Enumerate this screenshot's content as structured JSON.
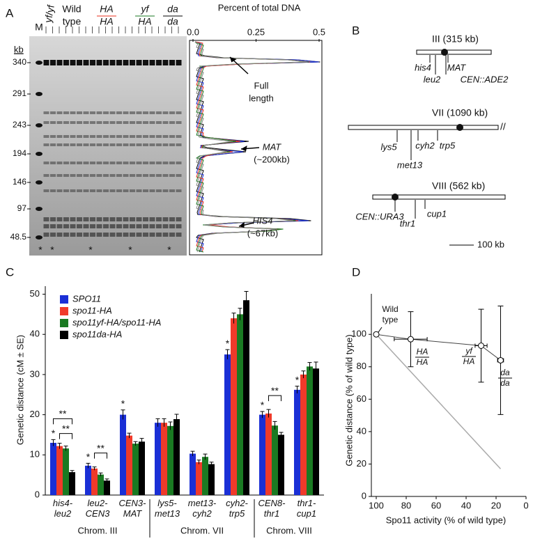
{
  "panel_labels": [
    "A",
    "B",
    "C",
    "D"
  ],
  "gel": {
    "lanes": [
      [
        "M"
      ],
      [
        "yf/yf"
      ],
      [
        "Wild",
        "type"
      ],
      [
        "HA",
        "HA"
      ],
      [
        "yf",
        "HA"
      ],
      [
        "da",
        "da"
      ]
    ],
    "lane_colors": [
      "#000000",
      "#555555",
      "#1a2fd6",
      "#e8321e",
      "#1a7a22",
      "#000000"
    ],
    "size_unit": "kb",
    "sizes": [
      340,
      291,
      243,
      194,
      146,
      97,
      48.5
    ],
    "stars": [
      "*",
      "*",
      "*",
      "*",
      "*"
    ]
  },
  "profile": {
    "axis_label": "Percent of total DNA",
    "xlim": [
      0,
      0.5
    ],
    "xticks": [
      {
        "value": 0,
        "label": "0.0"
      },
      0.25,
      0.5
    ],
    "annotations": [
      [
        "Full",
        "length"
      ],
      [
        "MAT",
        "(~200kb)"
      ],
      [
        "HIS4",
        "(~67kb)"
      ]
    ]
  },
  "map": {
    "chromosomes": [
      {
        "name": "III (315 kb)",
        "loci": [
          "his4",
          "leu2",
          "MAT",
          "CEN::ADE2"
        ]
      },
      {
        "name": "VII (1090 kb)",
        "loci": [
          "lys5",
          "met13",
          "cyh2",
          "trp5"
        ]
      },
      {
        "name": "VIII (562 kb)",
        "loci": [
          "CEN::URA3",
          "thr1",
          "cup1"
        ]
      }
    ],
    "scale": "100 kb"
  },
  "chart_data": [
    {
      "type": "bar",
      "ylabel": "Genetic distance (cM ± SE)",
      "categories": [
        "his4-leu2",
        "leu2-CEN3",
        "CEN3-MAT",
        "lys5-met13",
        "met13-cyh2",
        "cyh2-trp5",
        "CEN8-thr1",
        "thr1-cup1"
      ],
      "groups": [
        "Chrom. III",
        "Chrom. VII",
        "Chrom. VIII"
      ],
      "series": [
        {
          "name": "SPO11",
          "color": "#1a2fd6",
          "values": [
            13,
            7.3,
            20,
            18,
            10.3,
            35,
            20,
            26.2
          ],
          "errors": [
            0.8,
            0.6,
            1.2,
            1,
            0.6,
            1.2,
            0.8,
            0.9
          ]
        },
        {
          "name": "spo11-HA",
          "color": "#f03a2a",
          "values": [
            12.2,
            6.6,
            14.8,
            18,
            8.2,
            44,
            20.3,
            30
          ],
          "errors": [
            0.7,
            0.4,
            0.6,
            1,
            0.5,
            1.3,
            1,
            0.9
          ]
        },
        {
          "name": "spo11yf-HA/spo11-HA",
          "color": "#1a7a22",
          "values": [
            11.6,
            5.1,
            12.8,
            17.2,
            9.5,
            45,
            17.3,
            32
          ],
          "errors": [
            0.6,
            0.4,
            0.5,
            1,
            0.7,
            1.5,
            1,
            1
          ]
        },
        {
          "name": "spo11da-HA",
          "color": "#000000",
          "values": [
            5.7,
            3.6,
            13.3,
            18.9,
            7.7,
            48.5,
            15,
            31.5
          ],
          "errors": [
            0.4,
            0.4,
            0.8,
            1.2,
            0.5,
            2.2,
            0.6,
            1.6
          ]
        }
      ],
      "annotations": [
        "*",
        "*",
        "*",
        "*",
        "*",
        "*",
        "**",
        "**",
        "**",
        "**"
      ],
      "ylim": [
        0,
        52
      ],
      "yticks": [
        0,
        10,
        20,
        30,
        40,
        50
      ]
    },
    {
      "type": "line",
      "xlabel": "Spo11 activity (% of wild type)",
      "ylabel": "Genetic distance (% of wild type)",
      "x": [
        100,
        77,
        30,
        17
      ],
      "series": [
        {
          "color": "#444444",
          "values": [
            100,
            97,
            93,
            84
          ],
          "errors": [
            0,
            17,
            22.5,
            33.5
          ],
          "x_errors": [
            0,
            11,
            4,
            2
          ]
        }
      ],
      "point_labels": [
        [
          "Wild",
          "type"
        ],
        [
          "HA",
          "HA"
        ],
        [
          "yf",
          "HA"
        ],
        [
          "da",
          "da"
        ]
      ],
      "reference": {
        "color": "#aaaaaa",
        "x": [
          100,
          17
        ],
        "values": [
          100,
          17
        ]
      },
      "xlim": [
        100,
        0
      ],
      "xticks": [
        100,
        80,
        60,
        40,
        20,
        0
      ],
      "ylim": [
        0,
        125
      ],
      "yticks": [
        0,
        20,
        40,
        60,
        80,
        100
      ]
    }
  ]
}
